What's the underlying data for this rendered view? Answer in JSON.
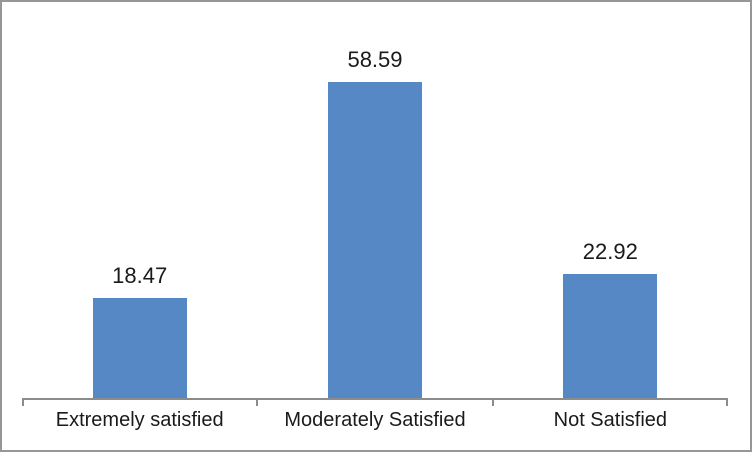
{
  "window": {
    "background": "#FFFFFF",
    "border_color": "#969696"
  },
  "chart_data": {
    "type": "bar",
    "title": "",
    "categories": [
      "Extremely satisfied",
      "Moderately Satisfied",
      "Not Satisfied"
    ],
    "values": [
      18.47,
      58.59,
      22.92
    ],
    "value_labels": [
      "18.47",
      "58.59",
      "22.92"
    ],
    "xlabel": "",
    "ylabel": "",
    "ylim": [
      0,
      70
    ],
    "gridlines": false,
    "legend_position": "none",
    "y_axis_visible": false,
    "data_labels_position": "above-bar",
    "bar_color": "#5588C4",
    "axis_color": "#8C8C8C",
    "label_color": "#1A1A1A"
  }
}
